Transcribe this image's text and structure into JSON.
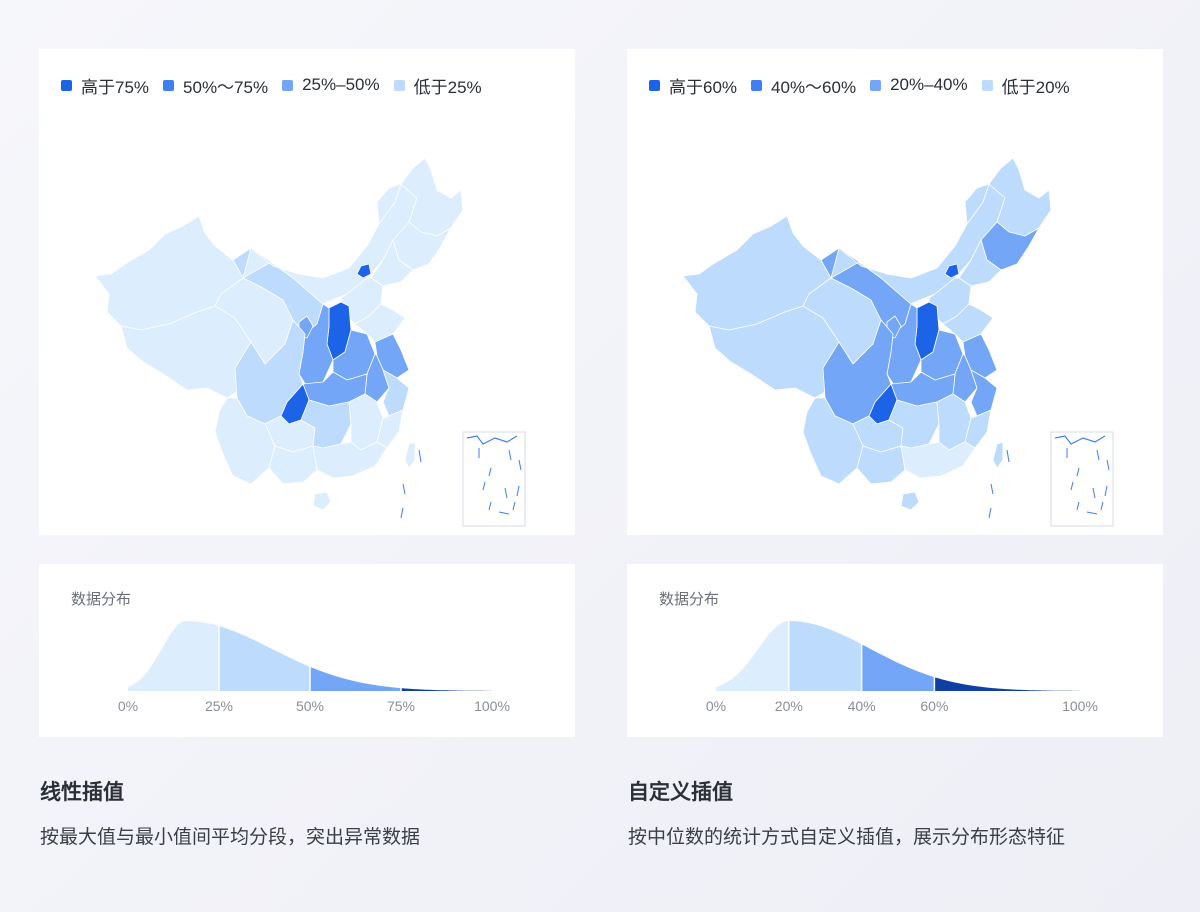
{
  "colors": {
    "level_1": "#1d63e8",
    "level_2": "#3f7ff0",
    "level_3": "#73a6f6",
    "level_4": "#bddbfc",
    "level_5": "#dcedfd",
    "tail_dark": "#0f3fa3",
    "outline": "#ffffff",
    "island": "#3f7ff0"
  },
  "panels": [
    {
      "id": "linear",
      "legend": [
        {
          "label": "高于75%",
          "color": "#1d63e8"
        },
        {
          "label": "50%～75%",
          "color": "#3f7ff0"
        },
        {
          "label": "25%–50%",
          "color": "#73a6f6"
        },
        {
          "label": "低于25%",
          "color": "#bddbfc"
        }
      ],
      "map": {
        "regions": {
          "xinjiang": "level_5",
          "xizang": "level_5",
          "qinghai": "level_5",
          "neimenggu": "level_5",
          "gansu": "level_4",
          "heilongjiang": "level_5",
          "jilin": "level_5",
          "liaoning": "level_5",
          "beijing": "level_1",
          "hebei": "level_5",
          "shanxi": "level_1",
          "shaanxi": "level_3",
          "henan": "level_3",
          "shandong": "level_5",
          "jiangsu": "level_3",
          "anhui": "level_3",
          "hubei": "level_3",
          "chongqing": "level_1",
          "sichuan": "level_4",
          "guizhou": "level_5",
          "yunnan": "level_5",
          "hunan": "level_4",
          "jiangxi": "level_5",
          "zhejiang": "level_4",
          "fujian": "level_5",
          "guangdong": "level_5",
          "guangxi": "level_5",
          "hainan": "level_5",
          "taiwan": "level_5",
          "ningxia": "level_3"
        }
      },
      "distribution": {
        "title": "数据分布",
        "tick_labels": [
          "0%",
          "25%",
          "50%",
          "75%",
          "100%"
        ],
        "breaks": [
          0,
          25,
          50,
          75,
          100
        ],
        "peak_at": 16,
        "segment_colors": [
          "#dcedfd",
          "#bddbfc",
          "#73a6f6",
          "#0f3fa3"
        ]
      },
      "caption": {
        "title": "线性插值",
        "description": "按最大值与最小值间平均分段，突出异常数据"
      }
    },
    {
      "id": "custom",
      "legend": [
        {
          "label": "高于60%",
          "color": "#1d63e8"
        },
        {
          "label": "40%～60%",
          "color": "#3f7ff0"
        },
        {
          "label": "20%–40%",
          "color": "#73a6f6"
        },
        {
          "label": "低于20%",
          "color": "#bddbfc"
        }
      ],
      "map": {
        "regions": {
          "xinjiang": "level_4",
          "xizang": "level_4",
          "qinghai": "level_4",
          "neimenggu": "level_4",
          "gansu": "level_3",
          "heilongjiang": "level_4",
          "jilin": "level_3",
          "liaoning": "level_4",
          "beijing": "level_1",
          "hebei": "level_4",
          "shanxi": "level_1",
          "shaanxi": "level_3",
          "henan": "level_3",
          "shandong": "level_4",
          "jiangsu": "level_3",
          "anhui": "level_3",
          "hubei": "level_3",
          "chongqing": "level_1",
          "sichuan": "level_3",
          "guizhou": "level_4",
          "yunnan": "level_4",
          "hunan": "level_4",
          "jiangxi": "level_4",
          "zhejiang": "level_3",
          "fujian": "level_4",
          "guangdong": "level_5",
          "guangxi": "level_4",
          "hainan": "level_4",
          "taiwan": "level_4",
          "ningxia": "level_3"
        }
      },
      "distribution": {
        "title": "数据分布",
        "tick_labels": [
          "0%",
          "20%",
          "40%",
          "60%",
          "100%"
        ],
        "breaks": [
          0,
          20,
          40,
          60,
          100
        ],
        "peak_at": 20,
        "segment_colors": [
          "#dcedfd",
          "#bddbfc",
          "#73a6f6",
          "#0f3fa3"
        ]
      },
      "caption": {
        "title": "自定义插值",
        "description": "按中位数的统计方式自定义插值，展示分布形态特征"
      }
    }
  ]
}
